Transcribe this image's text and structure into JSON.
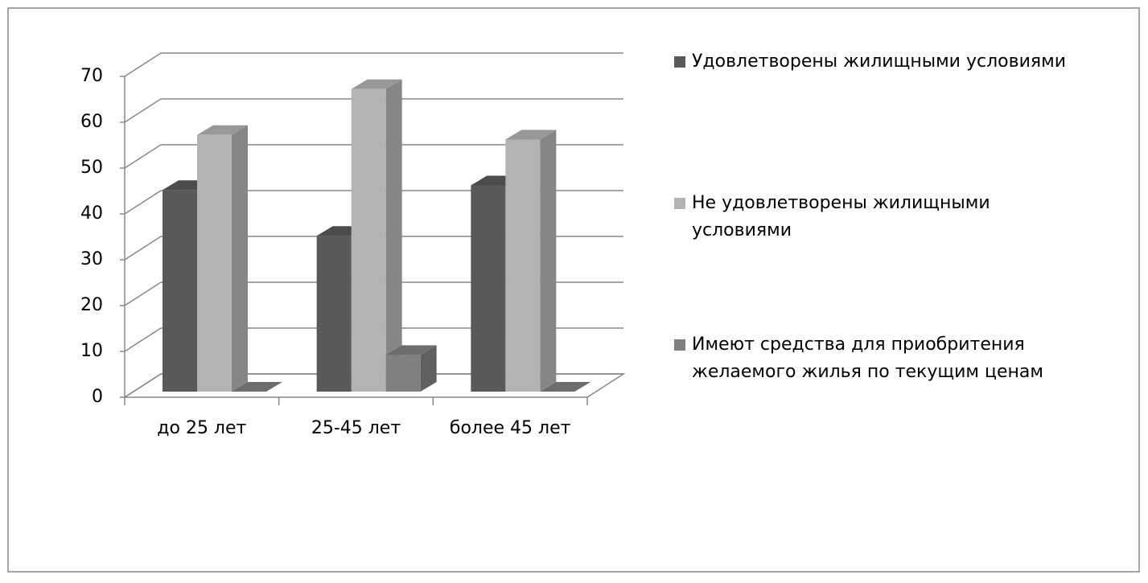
{
  "chart_data": {
    "type": "bar3d",
    "categories": [
      "до 25 лет",
      "25-45 лет",
      "более 45 лет"
    ],
    "series": [
      {
        "name": "Удовлетворены жилищными условиями",
        "color": "#595959",
        "values": [
          44,
          34,
          45
        ]
      },
      {
        "name": "Не удовлетворены жилищными условиями",
        "color": "#b3b3b3",
        "values": [
          56,
          66,
          55
        ]
      },
      {
        "name": "Имеют средства для приобритения желаемого жилья по текущим ценам",
        "color": "#808080",
        "values": [
          0,
          8,
          0
        ]
      }
    ],
    "ylim": [
      0,
      70
    ],
    "yticks": [
      0,
      10,
      20,
      30,
      40,
      50,
      60,
      70
    ],
    "grid": true,
    "legend": "right"
  }
}
